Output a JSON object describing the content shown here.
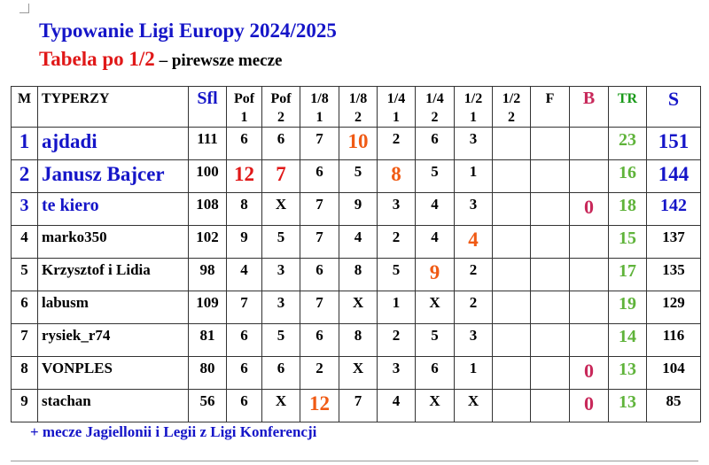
{
  "title": "Typowanie Ligi Europy 2024/2025",
  "subtitle_red": "Tabela po 1/2",
  "subtitle_dash": " – ",
  "subtitle_rest": " pirewsze mecze",
  "headers": [
    "M",
    "TYPERZY",
    "Sfl",
    "Pof\n1",
    "Pof\n2",
    "1/8\n1",
    "1/8\n2",
    "1/4\n1",
    "1/4\n2",
    "1/2\n1",
    "1/2\n2",
    "F",
    "B",
    "TR",
    "S"
  ],
  "colors": {
    "blue": "#1515c8",
    "red": "#e01818",
    "orange": "#f05a14",
    "green": "#5fb33a",
    "pink": "#c8285a"
  },
  "rows": [
    {
      "rank": "1",
      "name": "ajdadi",
      "style": "top1",
      "cells": [
        "111",
        "6",
        "6",
        "7",
        "10",
        "2",
        "6",
        "3",
        "",
        "",
        "",
        "23",
        "151"
      ],
      "hl": {
        "4": "orange"
      }
    },
    {
      "rank": "2",
      "name": "Janusz Bajcer",
      "style": "top2",
      "cells": [
        "100",
        "12",
        "7",
        "6",
        "5",
        "8",
        "5",
        "1",
        "",
        "",
        "",
        "16",
        "144"
      ],
      "hl": {
        "1": "red",
        "2": "red",
        "5": "orange"
      }
    },
    {
      "rank": "3",
      "name": "te kiero",
      "style": "top3",
      "cells": [
        "108",
        "8",
        "X",
        "7",
        "9",
        "3",
        "4",
        "3",
        "",
        "",
        "0",
        "18",
        "142"
      ],
      "hl": {}
    },
    {
      "rank": "4",
      "name": "marko350",
      "style": "",
      "cells": [
        "102",
        "9",
        "5",
        "7",
        "4",
        "2",
        "4",
        "4",
        "",
        "",
        "",
        "15",
        "137"
      ],
      "hl": {
        "7": "orange"
      }
    },
    {
      "rank": "5",
      "name": "Krzysztof i Lidia",
      "style": "",
      "cells": [
        "98",
        "4",
        "3",
        "6",
        "8",
        "5",
        "9",
        "2",
        "",
        "",
        "",
        "17",
        "135"
      ],
      "hl": {
        "6": "orange"
      }
    },
    {
      "rank": "6",
      "name": "labusm",
      "style": "",
      "cells": [
        "109",
        "7",
        "3",
        "7",
        "X",
        "1",
        "X",
        "2",
        "",
        "",
        "",
        "19",
        "129"
      ],
      "hl": {}
    },
    {
      "rank": "7",
      "name": "rysiek_r74",
      "style": "",
      "cells": [
        "81",
        "6",
        "5",
        "6",
        "8",
        "2",
        "5",
        "3",
        "",
        "",
        "",
        "14",
        "116"
      ],
      "hl": {}
    },
    {
      "rank": "8",
      "name": "VONPLES",
      "style": "",
      "cells": [
        "80",
        "6",
        "6",
        "2",
        "X",
        "3",
        "6",
        "1",
        "",
        "",
        "0",
        "13",
        "104"
      ],
      "hl": {}
    },
    {
      "rank": "9",
      "name": "stachan",
      "style": "",
      "cells": [
        "56",
        "6",
        "X",
        "12",
        "7",
        "4",
        "X",
        "X",
        "",
        "",
        "0",
        "13",
        "85"
      ],
      "hl": {
        "3": "orange"
      }
    }
  ],
  "footnote": "+ mecze Jagiellonii i Legii z Ligi Konferencji"
}
